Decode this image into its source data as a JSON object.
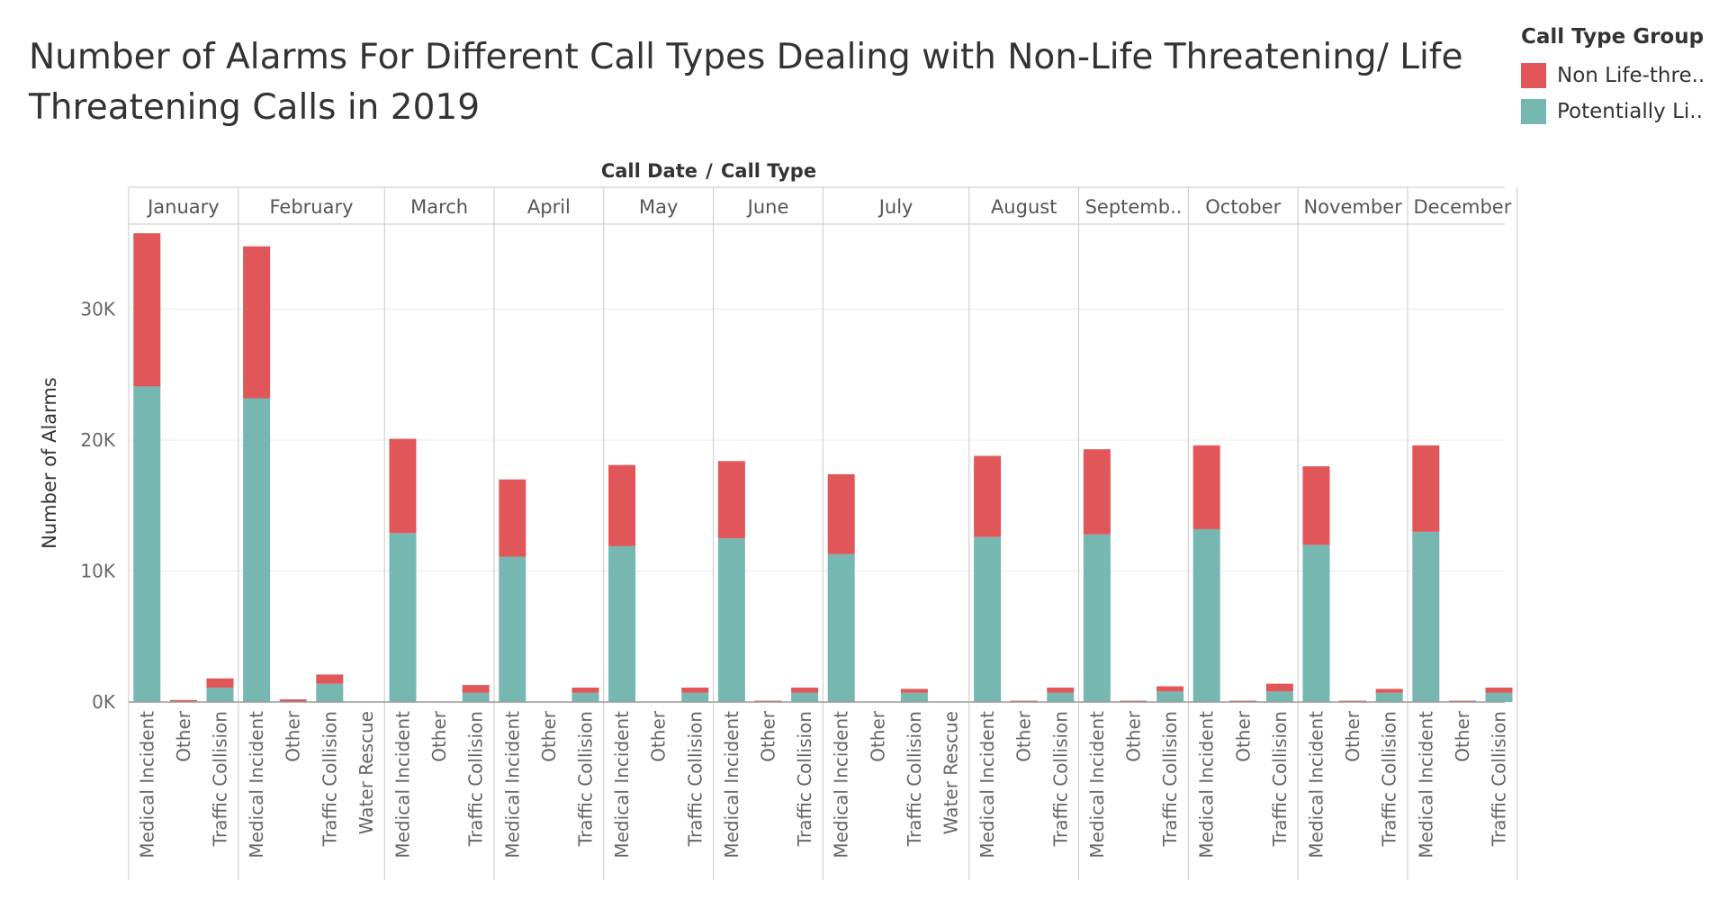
{
  "title": "Number of Alarms For Different Call Types Dealing with Non-Life Threatening/ Life Threatening Calls in 2019",
  "legend": {
    "title": "Call Type Group",
    "items": [
      {
        "label": "Non Life-thre..",
        "color": "#e15759"
      },
      {
        "label": "Potentially Li..",
        "color": "#76b7b2"
      }
    ]
  },
  "chart_data": {
    "type": "bar",
    "stacked": true,
    "column_header": "Call Date",
    "column_header_sep": "/",
    "column_header_2": "Call Type",
    "ylabel": "Number of Alarms",
    "ylim": [
      0,
      36500
    ],
    "yticks": [
      0,
      10000,
      20000,
      30000
    ],
    "ytick_labels": [
      "0K",
      "10K",
      "20K",
      "30K"
    ],
    "grid": true,
    "legend_position": "top-right",
    "series": [
      {
        "name": "Potentially Li..",
        "key": "life",
        "color": "#76b7b2"
      },
      {
        "name": "Non Life-thre..",
        "key": "non_life",
        "color": "#e15759"
      }
    ],
    "months": [
      {
        "label": "January",
        "call_types": [
          {
            "label": "Medical Incident",
            "life": 24100,
            "non_life": 11700
          },
          {
            "label": "Other",
            "life": 0,
            "non_life": 150
          },
          {
            "label": "Traffic Collision",
            "life": 1100,
            "non_life": 700
          }
        ]
      },
      {
        "label": "February",
        "call_types": [
          {
            "label": "Medical Incident",
            "life": 23200,
            "non_life": 11600
          },
          {
            "label": "Other",
            "life": 0,
            "non_life": 200
          },
          {
            "label": "Traffic Collision",
            "life": 1400,
            "non_life": 700
          },
          {
            "label": "Water Rescue",
            "life": 0,
            "non_life": 0
          }
        ]
      },
      {
        "label": "March",
        "call_types": [
          {
            "label": "Medical Incident",
            "life": 12900,
            "non_life": 7200
          },
          {
            "label": "Other",
            "life": 0,
            "non_life": 0
          },
          {
            "label": "Traffic Collision",
            "life": 700,
            "non_life": 600
          }
        ]
      },
      {
        "label": "April",
        "call_types": [
          {
            "label": "Medical Incident",
            "life": 11100,
            "non_life": 5900
          },
          {
            "label": "Other",
            "life": 0,
            "non_life": 0
          },
          {
            "label": "Traffic Collision",
            "life": 700,
            "non_life": 400
          }
        ]
      },
      {
        "label": "May",
        "call_types": [
          {
            "label": "Medical Incident",
            "life": 11900,
            "non_life": 6200
          },
          {
            "label": "Other",
            "life": 0,
            "non_life": 0
          },
          {
            "label": "Traffic Collision",
            "life": 700,
            "non_life": 400
          }
        ]
      },
      {
        "label": "June",
        "call_types": [
          {
            "label": "Medical Incident",
            "life": 12500,
            "non_life": 5900
          },
          {
            "label": "Other",
            "life": 0,
            "non_life": 100
          },
          {
            "label": "Traffic Collision",
            "life": 700,
            "non_life": 400
          }
        ]
      },
      {
        "label": "July",
        "call_types": [
          {
            "label": "Medical Incident",
            "life": 11300,
            "non_life": 6100
          },
          {
            "label": "Other",
            "life": 0,
            "non_life": 0
          },
          {
            "label": "Traffic Collision",
            "life": 700,
            "non_life": 300
          },
          {
            "label": "Water Rescue",
            "life": 0,
            "non_life": 0
          }
        ]
      },
      {
        "label": "August",
        "call_types": [
          {
            "label": "Medical Incident",
            "life": 12600,
            "non_life": 6200
          },
          {
            "label": "Other",
            "life": 0,
            "non_life": 100
          },
          {
            "label": "Traffic Collision",
            "life": 700,
            "non_life": 400
          }
        ]
      },
      {
        "label": "Septemb..",
        "call_types": [
          {
            "label": "Medical Incident",
            "life": 12800,
            "non_life": 6500
          },
          {
            "label": "Other",
            "life": 0,
            "non_life": 100
          },
          {
            "label": "Traffic Collision",
            "life": 800,
            "non_life": 400
          }
        ]
      },
      {
        "label": "October",
        "call_types": [
          {
            "label": "Medical Incident",
            "life": 13200,
            "non_life": 6400
          },
          {
            "label": "Other",
            "life": 0,
            "non_life": 100
          },
          {
            "label": "Traffic Collision",
            "life": 800,
            "non_life": 600
          }
        ]
      },
      {
        "label": "November",
        "call_types": [
          {
            "label": "Medical Incident",
            "life": 12000,
            "non_life": 6000
          },
          {
            "label": "Other",
            "life": 0,
            "non_life": 100
          },
          {
            "label": "Traffic Collision",
            "life": 700,
            "non_life": 300
          }
        ]
      },
      {
        "label": "December",
        "call_types": [
          {
            "label": "Medical Incident",
            "life": 13000,
            "non_life": 6600
          },
          {
            "label": "Other",
            "life": 0,
            "non_life": 100
          },
          {
            "label": "Traffic Collision",
            "life": 700,
            "non_life": 400
          }
        ]
      }
    ]
  }
}
